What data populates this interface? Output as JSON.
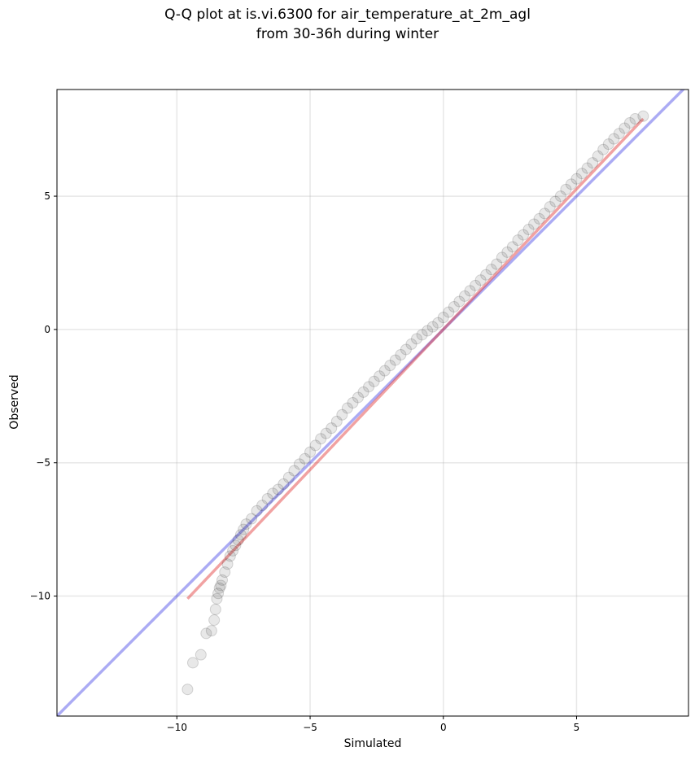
{
  "chart_data": {
    "type": "scatter",
    "title_line1": "Q-Q plot at is.vi.6300 for air_temperature_at_2m_agl",
    "title_line2": "from 30-36h during winter",
    "xlabel": "Simulated",
    "ylabel": "Observed",
    "xlim": [
      -14.5,
      9.2
    ],
    "ylim": [
      -14.5,
      9.0
    ],
    "xticks": [
      -10,
      -5,
      0,
      5
    ],
    "yticks": [
      -10,
      -5,
      0,
      5
    ],
    "xtick_labels": [
      "−10",
      "−5",
      "0",
      "5"
    ],
    "ytick_labels": [
      "−10",
      "−5",
      "0",
      "5"
    ],
    "grid": true,
    "reference_line": {
      "label": "",
      "color": "#0000dd",
      "x": [
        -14.5,
        9.2
      ],
      "y": [
        -14.5,
        9.2
      ]
    },
    "fit_line": {
      "label": "",
      "color": "#e03030",
      "x": [
        -9.6,
        7.5
      ],
      "y": [
        -10.1,
        7.9
      ]
    },
    "points": {
      "color": "#000000",
      "x": [
        -9.6,
        -9.4,
        -9.1,
        -8.9,
        -8.7,
        -8.6,
        -8.55,
        -8.5,
        -8.45,
        -8.4,
        -8.35,
        -8.3,
        -8.2,
        -8.1,
        -8.0,
        -7.9,
        -7.8,
        -7.7,
        -7.6,
        -7.5,
        -7.4,
        -7.2,
        -7.0,
        -6.8,
        -6.6,
        -6.4,
        -6.2,
        -6.0,
        -5.8,
        -5.6,
        -5.4,
        -5.2,
        -5.0,
        -4.8,
        -4.6,
        -4.4,
        -4.2,
        -4.0,
        -3.8,
        -3.6,
        -3.4,
        -3.2,
        -3.0,
        -2.8,
        -2.6,
        -2.4,
        -2.2,
        -2.0,
        -1.8,
        -1.6,
        -1.4,
        -1.2,
        -1.0,
        -0.8,
        -0.6,
        -0.4,
        -0.2,
        0.0,
        0.2,
        0.4,
        0.6,
        0.8,
        1.0,
        1.2,
        1.4,
        1.6,
        1.8,
        2.0,
        2.2,
        2.4,
        2.6,
        2.8,
        3.0,
        3.2,
        3.4,
        3.6,
        3.8,
        4.0,
        4.2,
        4.4,
        4.6,
        4.8,
        5.0,
        5.2,
        5.4,
        5.6,
        5.8,
        6.0,
        6.2,
        6.4,
        6.6,
        6.8,
        7.0,
        7.2,
        7.5
      ],
      "y": [
        -13.5,
        -12.5,
        -12.2,
        -11.4,
        -11.3,
        -10.9,
        -10.5,
        -10.1,
        -9.9,
        -9.7,
        -9.6,
        -9.4,
        -9.1,
        -8.8,
        -8.5,
        -8.3,
        -8.1,
        -7.9,
        -7.7,
        -7.5,
        -7.3,
        -7.1,
        -6.8,
        -6.6,
        -6.35,
        -6.15,
        -6.0,
        -5.8,
        -5.55,
        -5.3,
        -5.05,
        -4.85,
        -4.6,
        -4.35,
        -4.1,
        -3.9,
        -3.7,
        -3.45,
        -3.2,
        -2.95,
        -2.75,
        -2.55,
        -2.35,
        -2.15,
        -1.95,
        -1.75,
        -1.55,
        -1.35,
        -1.15,
        -0.95,
        -0.75,
        -0.55,
        -0.35,
        -0.2,
        -0.05,
        0.1,
        0.25,
        0.45,
        0.65,
        0.85,
        1.05,
        1.25,
        1.45,
        1.65,
        1.85,
        2.05,
        2.25,
        2.45,
        2.7,
        2.9,
        3.1,
        3.35,
        3.55,
        3.75,
        3.95,
        4.15,
        4.35,
        4.6,
        4.8,
        5.0,
        5.25,
        5.45,
        5.65,
        5.85,
        6.05,
        6.25,
        6.5,
        6.75,
        6.95,
        7.15,
        7.35,
        7.55,
        7.75,
        7.9,
        8.0
      ]
    }
  }
}
